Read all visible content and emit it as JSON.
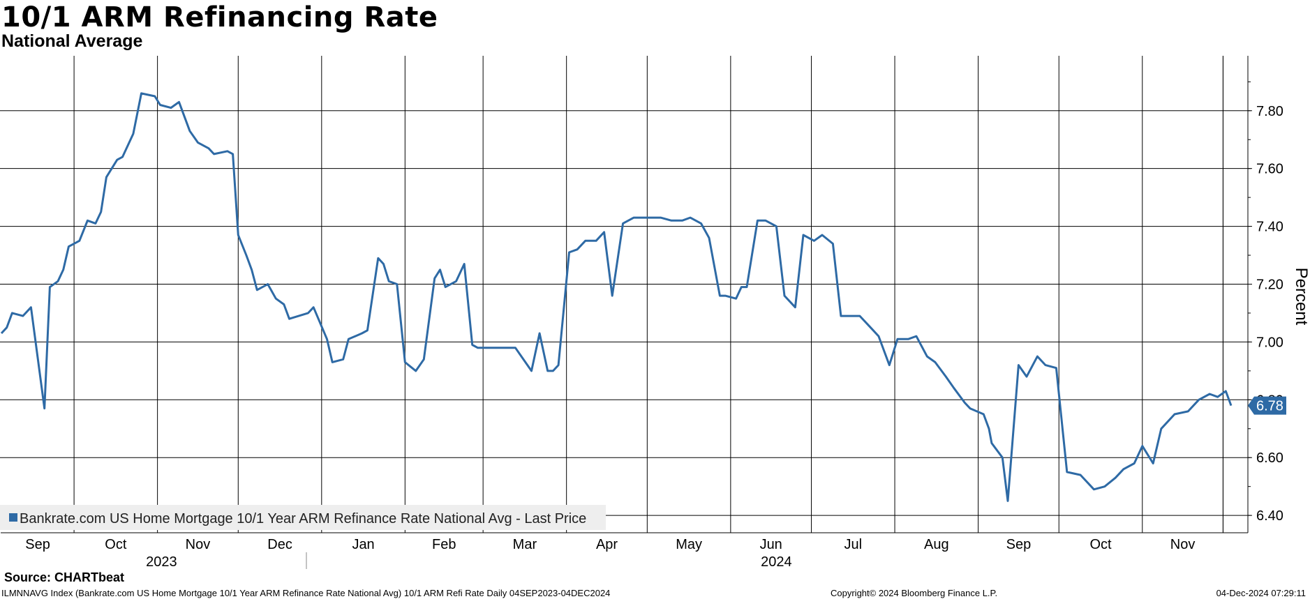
{
  "title": "10/1 ARM Refinancing Rate",
  "subtitle": "National Average",
  "source": "Source: CHARTbeat",
  "footer": {
    "left": "ILMNNAVG Index (Bankrate.com US Home Mortgage 10/1 Year ARM Refinance Rate National Avg) 10/1 ARM Refi Rate  Daily 04SEP2023-04DEC2024",
    "center": "Copyright© 2024 Bloomberg Finance L.P.",
    "right": "04-Dec-2024 07:29:11"
  },
  "colors": {
    "line": "#2e6aa5",
    "grid": "#000000",
    "legend_bg": "#eeeeee",
    "last_label_bg": "#2e6aa5"
  },
  "chart_data": {
    "type": "line",
    "ylabel": "Percent",
    "ylim": [
      6.34,
      7.99
    ],
    "yticks": [
      "7.80",
      "7.60",
      "7.40",
      "7.20",
      "7.00",
      "6.80",
      "6.60",
      "6.40"
    ],
    "x_month_labels": [
      "Sep",
      "Oct",
      "Nov",
      "Dec",
      "Jan",
      "Feb",
      "Mar",
      "Apr",
      "May",
      "Jun",
      "Jul",
      "Aug",
      "Sep",
      "Oct",
      "Nov"
    ],
    "x_year_labels": [
      "2023",
      "2024"
    ],
    "legend": "Bankrate.com US Home Mortgage 10/1 Year ARM Refinance Rate National Avg - Last Price",
    "last_value_label": "6.78",
    "series": [
      {
        "name": "Bankrate.com US Home Mortgage 10/1 Year ARM Refinance Rate National Avg - Last Price",
        "x": [
          "2023-09-04",
          "2023-09-06",
          "2023-09-08",
          "2023-09-12",
          "2023-09-15",
          "2023-09-20",
          "2023-09-22",
          "2023-09-25",
          "2023-09-27",
          "2023-09-29",
          "2023-10-03",
          "2023-10-06",
          "2023-10-09",
          "2023-10-11",
          "2023-10-13",
          "2023-10-17",
          "2023-10-19",
          "2023-10-23",
          "2023-10-26",
          "2023-10-31",
          "2023-11-02",
          "2023-11-06",
          "2023-11-09",
          "2023-11-13",
          "2023-11-16",
          "2023-11-20",
          "2023-11-22",
          "2023-11-27",
          "2023-11-29",
          "2023-12-01",
          "2023-12-04",
          "2023-12-06",
          "2023-12-08",
          "2023-12-12",
          "2023-12-15",
          "2023-12-18",
          "2023-12-20",
          "2023-12-27",
          "2023-12-29",
          "2024-01-03",
          "2024-01-05",
          "2024-01-09",
          "2024-01-11",
          "2024-01-16",
          "2024-01-18",
          "2024-01-22",
          "2024-01-24",
          "2024-01-26",
          "2024-01-29",
          "2024-02-01",
          "2024-02-05",
          "2024-02-08",
          "2024-02-12",
          "2024-02-14",
          "2024-02-16",
          "2024-02-20",
          "2024-02-23",
          "2024-02-26",
          "2024-02-28",
          "2024-03-01",
          "2024-03-05",
          "2024-03-08",
          "2024-03-13",
          "2024-03-19",
          "2024-03-22",
          "2024-03-25",
          "2024-03-27",
          "2024-03-29",
          "2024-04-02",
          "2024-04-05",
          "2024-04-08",
          "2024-04-12",
          "2024-04-15",
          "2024-04-18",
          "2024-04-22",
          "2024-04-26",
          "2024-05-01",
          "2024-05-06",
          "2024-05-10",
          "2024-05-14",
          "2024-05-17",
          "2024-05-21",
          "2024-05-24",
          "2024-05-28",
          "2024-05-30",
          "2024-06-03",
          "2024-06-05",
          "2024-06-07",
          "2024-06-11",
          "2024-06-14",
          "2024-06-18",
          "2024-06-21",
          "2024-06-25",
          "2024-06-28",
          "2024-07-02",
          "2024-07-05",
          "2024-07-09",
          "2024-07-12",
          "2024-07-16",
          "2024-07-19",
          "2024-07-23",
          "2024-07-26",
          "2024-07-30",
          "2024-08-02",
          "2024-08-06",
          "2024-08-09",
          "2024-08-13",
          "2024-08-16",
          "2024-08-20",
          "2024-08-23",
          "2024-08-27",
          "2024-08-29",
          "2024-09-03",
          "2024-09-05",
          "2024-09-06",
          "2024-09-10",
          "2024-09-12",
          "2024-09-16",
          "2024-09-19",
          "2024-09-23",
          "2024-09-26",
          "2024-09-30",
          "2024-10-04",
          "2024-10-09",
          "2024-10-14",
          "2024-10-18",
          "2024-10-22",
          "2024-10-25",
          "2024-10-29",
          "2024-11-01",
          "2024-11-05",
          "2024-11-08",
          "2024-11-13",
          "2024-11-18",
          "2024-11-22",
          "2024-11-26",
          "2024-11-29",
          "2024-12-02",
          "2024-12-04"
        ],
        "y": [
          7.03,
          7.05,
          7.1,
          7.09,
          7.12,
          6.77,
          7.19,
          7.21,
          7.25,
          7.33,
          7.35,
          7.42,
          7.41,
          7.45,
          7.57,
          7.63,
          7.64,
          7.72,
          7.86,
          7.85,
          7.82,
          7.81,
          7.83,
          7.73,
          7.69,
          7.67,
          7.65,
          7.66,
          7.65,
          7.37,
          7.3,
          7.25,
          7.18,
          7.2,
          7.15,
          7.13,
          7.08,
          7.1,
          7.12,
          7.01,
          6.93,
          6.94,
          7.01,
          7.03,
          7.04,
          7.29,
          7.27,
          7.21,
          7.2,
          6.93,
          6.9,
          6.94,
          7.22,
          7.25,
          7.19,
          7.21,
          7.27,
          6.99,
          6.98,
          6.98,
          6.98,
          6.98,
          6.98,
          6.9,
          7.03,
          6.9,
          6.9,
          6.92,
          7.31,
          7.32,
          7.35,
          7.35,
          7.38,
          7.16,
          7.41,
          7.43,
          7.43,
          7.43,
          7.42,
          7.42,
          7.43,
          7.41,
          7.36,
          7.16,
          7.16,
          7.15,
          7.19,
          7.19,
          7.42,
          7.42,
          7.4,
          7.16,
          7.12,
          7.37,
          7.35,
          7.37,
          7.34,
          7.09,
          7.09,
          7.09,
          7.05,
          7.02,
          6.92,
          7.01,
          7.01,
          7.02,
          6.95,
          6.93,
          6.88,
          6.84,
          6.79,
          6.77,
          6.75,
          6.7,
          6.65,
          6.6,
          6.45,
          6.92,
          6.88,
          6.95,
          6.92,
          6.91,
          6.55,
          6.54,
          6.49,
          6.5,
          6.53,
          6.56,
          6.58,
          6.64,
          6.58,
          6.7,
          6.75,
          6.76,
          6.8,
          6.82,
          6.81,
          6.83,
          6.78
        ]
      }
    ]
  }
}
